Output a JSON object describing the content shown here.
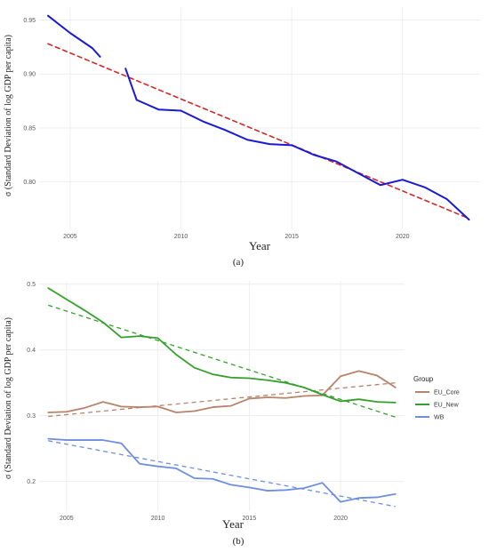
{
  "chart_data": [
    {
      "panel": "(a)",
      "type": "line",
      "xlabel": "Year",
      "ylabel": "σ (Standard Deviation of log GDP per capita)",
      "xlim": [
        2003.6,
        2023.5
      ],
      "ylim": [
        0.756,
        0.962
      ],
      "x_ticks": [
        2005,
        2010,
        2015,
        2020
      ],
      "x_tick_labels": [
        "2005",
        "2010",
        "2015",
        "2020"
      ],
      "y_ticks": [
        0.8,
        0.85,
        0.9,
        0.95
      ],
      "y_tick_labels": [
        "0.80",
        "0.85",
        "0.90",
        "0.95"
      ],
      "grid": true,
      "series": [
        {
          "style": "solid",
          "color": "#1a1ad6",
          "x": [
            2004,
            2005,
            2006,
            2006.35
          ],
          "y": [
            0.954,
            0.938,
            0.924,
            0.916
          ]
        },
        {
          "style": "solid",
          "color": "#1a1ad6",
          "x": [
            2007.5,
            2008,
            2009,
            2010,
            2011,
            2012,
            2013,
            2014,
            2015,
            2016,
            2017,
            2018,
            2019,
            2020,
            2021,
            2022,
            2023
          ],
          "y": [
            0.905,
            0.876,
            0.867,
            0.866,
            0.856,
            0.848,
            0.839,
            0.835,
            0.834,
            0.825,
            0.819,
            0.808,
            0.797,
            0.802,
            0.795,
            0.784,
            0.765
          ]
        },
        {
          "style": "dashed",
          "color": "#d62728",
          "x": [
            2004,
            2023
          ],
          "y": [
            0.928,
            0.766
          ]
        }
      ]
    },
    {
      "panel": "(b)",
      "type": "line",
      "xlabel": "Year",
      "ylabel": "σ (Standard Deviation of log GDP per capita)",
      "xlim": [
        2003.5,
        2023.5
      ],
      "ylim": [
        0.155,
        0.505
      ],
      "x_ticks": [
        2005,
        2010,
        2015,
        2020
      ],
      "x_tick_labels": [
        "2005",
        "2010",
        "2015",
        "2020"
      ],
      "y_ticks": [
        0.2,
        0.3,
        0.4,
        0.5
      ],
      "y_tick_labels": [
        "0.2",
        "0.3",
        "0.4",
        "0.5"
      ],
      "grid": true,
      "legend": {
        "title": "Group",
        "placement": "right",
        "entries": [
          "EU_Core",
          "EU_New",
          "WB"
        ]
      },
      "series": [
        {
          "name": "EU_Core",
          "color": "#b8826b",
          "x": [
            2004,
            2005,
            2006,
            2007,
            2008,
            2009,
            2010,
            2011,
            2012,
            2013,
            2014,
            2015,
            2016,
            2017,
            2018,
            2019,
            2020,
            2021,
            2022,
            2023
          ],
          "y": [
            0.305,
            0.306,
            0.312,
            0.321,
            0.314,
            0.313,
            0.314,
            0.305,
            0.307,
            0.313,
            0.315,
            0.326,
            0.328,
            0.327,
            0.33,
            0.331,
            0.36,
            0.368,
            0.361,
            0.343
          ],
          "trend": [
            0.299,
            0.35
          ]
        },
        {
          "name": "EU_New",
          "color": "#34a02c",
          "x": [
            2004,
            2005,
            2006,
            2007,
            2008,
            2009,
            2010,
            2011,
            2012,
            2013,
            2014,
            2015,
            2016,
            2017,
            2018,
            2019,
            2020,
            2021,
            2022,
            2023
          ],
          "y": [
            0.494,
            0.477,
            0.46,
            0.442,
            0.419,
            0.421,
            0.418,
            0.393,
            0.373,
            0.363,
            0.358,
            0.357,
            0.354,
            0.35,
            0.343,
            0.332,
            0.322,
            0.325,
            0.321,
            0.32
          ],
          "trend": [
            0.468,
            0.298
          ]
        },
        {
          "name": "WB",
          "color": "#6e8fe0",
          "x": [
            2004,
            2005,
            2006,
            2007,
            2008,
            2009,
            2010,
            2011,
            2012,
            2013,
            2014,
            2015,
            2016,
            2017,
            2018,
            2019,
            2020,
            2021,
            2022,
            2023
          ],
          "y": [
            0.265,
            0.263,
            0.263,
            0.263,
            0.258,
            0.227,
            0.223,
            0.22,
            0.205,
            0.204,
            0.195,
            0.191,
            0.186,
            0.187,
            0.19,
            0.198,
            0.169,
            0.175,
            0.176,
            0.181
          ],
          "trend": [
            0.262,
            0.162
          ]
        }
      ]
    }
  ]
}
